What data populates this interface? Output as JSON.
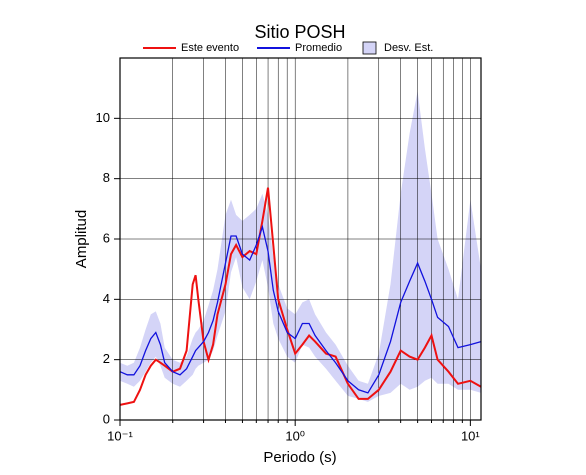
{
  "chart_data": {
    "type": "line",
    "title": "Sitio POSH",
    "xlabel": "Periodo (s)",
    "ylabel": "Amplitud",
    "xscale": "log",
    "grid": true,
    "xlim": [
      0.1,
      11.5
    ],
    "ylim": [
      0,
      12
    ],
    "xticks": [
      {
        "value": 0.1,
        "label": "10⁻¹"
      },
      {
        "value": 1,
        "label": "10⁰"
      },
      {
        "value": 10,
        "label": "10¹"
      }
    ],
    "xminorticks": [
      0.2,
      0.3,
      0.4,
      0.5,
      0.6,
      0.7,
      0.8,
      0.9,
      2,
      3,
      4,
      5,
      6,
      7,
      8,
      9
    ],
    "yticks": [
      0,
      2,
      4,
      6,
      8,
      10
    ],
    "x": [
      0.1,
      0.11,
      0.12,
      0.13,
      0.14,
      0.15,
      0.16,
      0.17,
      0.18,
      0.2,
      0.22,
      0.24,
      0.26,
      0.27,
      0.28,
      0.3,
      0.32,
      0.34,
      0.36,
      0.4,
      0.43,
      0.46,
      0.5,
      0.55,
      0.6,
      0.65,
      0.7,
      0.75,
      0.8,
      0.9,
      1.0,
      1.1,
      1.2,
      1.3,
      1.5,
      1.7,
      2.0,
      2.3,
      2.6,
      3.0,
      3.5,
      4.0,
      4.5,
      5.0,
      5.5,
      6.0,
      6.5,
      7.5,
      8.5,
      10,
      11.5
    ],
    "band": {
      "name": "Desv. Est.",
      "color": "#d4d4f7",
      "upper": [
        1.9,
        1.8,
        1.9,
        2.4,
        3.0,
        3.5,
        3.6,
        3.2,
        2.4,
        2.0,
        1.9,
        2.1,
        2.7,
        2.9,
        3.0,
        3.3,
        3.8,
        4.3,
        5.0,
        6.8,
        7.3,
        6.8,
        6.6,
        6.8,
        7.0,
        7.5,
        6.8,
        5.4,
        4.5,
        3.7,
        3.5,
        3.9,
        4.0,
        3.5,
        2.9,
        2.5,
        1.8,
        1.3,
        1.2,
        2.2,
        4.5,
        7.5,
        9.5,
        10.9,
        9.0,
        7.5,
        6.0,
        5.0,
        4.0,
        7.3,
        5.0
      ],
      "lower": [
        1.3,
        1.2,
        1.1,
        1.3,
        1.6,
        1.9,
        2.1,
        1.8,
        1.4,
        1.2,
        1.1,
        1.3,
        1.5,
        1.7,
        1.8,
        1.9,
        2.0,
        2.3,
        2.8,
        3.6,
        4.9,
        5.4,
        4.4,
        4.0,
        4.6,
        5.3,
        4.4,
        3.2,
        2.7,
        2.1,
        1.9,
        2.5,
        2.4,
        2.1,
        1.7,
        1.3,
        0.8,
        0.7,
        0.6,
        0.8,
        0.9,
        1.2,
        1.0,
        1.1,
        1.3,
        1.4,
        1.2,
        1.2,
        1.0,
        1.0,
        0.9
      ]
    },
    "series": [
      {
        "name": "Este evento",
        "color": "#ee1111",
        "values": [
          0.5,
          0.55,
          0.6,
          1.0,
          1.5,
          1.8,
          2.0,
          1.9,
          1.8,
          1.6,
          1.7,
          2.3,
          4.5,
          4.8,
          4.0,
          2.6,
          2.0,
          2.5,
          3.5,
          4.5,
          5.5,
          5.8,
          5.4,
          5.6,
          5.5,
          6.6,
          7.7,
          5.8,
          4.0,
          3.0,
          2.2,
          2.5,
          2.8,
          2.6,
          2.2,
          2.1,
          1.2,
          0.7,
          0.7,
          1.0,
          1.6,
          2.3,
          2.1,
          2.0,
          2.4,
          2.8,
          2.0,
          1.6,
          1.2,
          1.3,
          1.1
        ]
      },
      {
        "name": "Promedio",
        "color": "#1111dd",
        "values": [
          1.6,
          1.5,
          1.5,
          1.8,
          2.3,
          2.7,
          2.9,
          2.5,
          1.9,
          1.6,
          1.5,
          1.7,
          2.1,
          2.3,
          2.4,
          2.6,
          2.9,
          3.3,
          3.9,
          5.2,
          6.1,
          6.1,
          5.5,
          5.3,
          5.8,
          6.4,
          5.6,
          4.3,
          3.6,
          2.9,
          2.7,
          3.2,
          3.2,
          2.8,
          2.3,
          1.9,
          1.3,
          1.0,
          0.9,
          1.5,
          2.6,
          3.9,
          4.6,
          5.2,
          4.6,
          4.0,
          3.4,
          3.1,
          2.4,
          2.5,
          2.6
        ]
      }
    ]
  }
}
